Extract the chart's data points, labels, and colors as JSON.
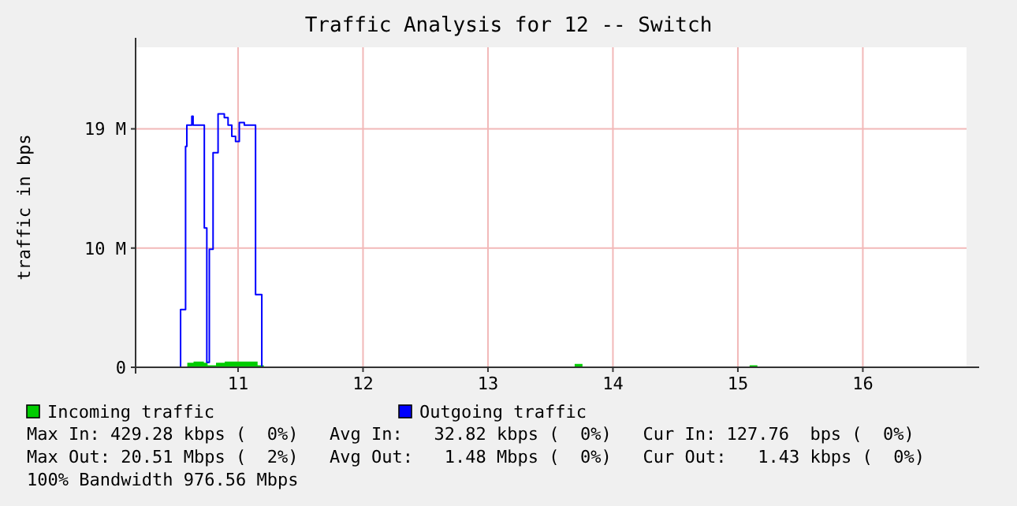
{
  "chart_data": {
    "type": "step",
    "title": "Traffic Analysis for 12 -- Switch",
    "ylabel": "traffic in bps",
    "xlim": [
      10.18,
      16.83
    ],
    "xticks": [
      11,
      12,
      13,
      14,
      15,
      16
    ],
    "ylim": [
      0,
      25.5
    ],
    "yticks": [
      {
        "value": 0,
        "label": "0"
      },
      {
        "value": 9.5,
        "label": "10 M"
      },
      {
        "value": 19,
        "label": "19 M"
      }
    ],
    "grid": true,
    "legend": "bottom",
    "series": [
      {
        "name": "Incoming traffic",
        "color": "#00cc00",
        "type": "area",
        "x": [
          10.18,
          10.6,
          10.65,
          10.72,
          10.75,
          10.83,
          10.9,
          11.1,
          11.15,
          11.2,
          13.7,
          13.75,
          15.1,
          15.15,
          16.83
        ],
        "values": [
          0,
          0.3,
          0.4,
          0.3,
          0.1,
          0.3,
          0.4,
          0.4,
          0.1,
          0,
          0.2,
          0,
          0.1,
          0,
          0
        ]
      },
      {
        "name": "Outgoing traffic",
        "color": "#0000ff",
        "x": [
          10.18,
          10.54,
          10.58,
          10.59,
          10.63,
          10.64,
          10.73,
          10.75,
          10.77,
          10.8,
          10.84,
          10.89,
          10.92,
          10.95,
          10.98,
          11.01,
          11.05,
          11.14,
          11.19,
          16.83
        ],
        "values": [
          0,
          4.6,
          17.6,
          19.3,
          20.0,
          19.3,
          11.1,
          0.4,
          9.4,
          17.1,
          20.2,
          19.9,
          19.3,
          18.4,
          18.0,
          19.5,
          19.3,
          5.8,
          0,
          0
        ]
      }
    ],
    "annotations": [
      "Max In: 429.28 kbps (  0%)   Avg In:   32.82 kbps (  0%)   Cur In: 127.76  bps (  0%)",
      "Max Out: 20.51 Mbps (  2%)   Avg Out:   1.48 Mbps (  0%)   Cur Out:   1.43 kbps (  0%)",
      "100% Bandwidth 976.56 Mbps"
    ]
  }
}
